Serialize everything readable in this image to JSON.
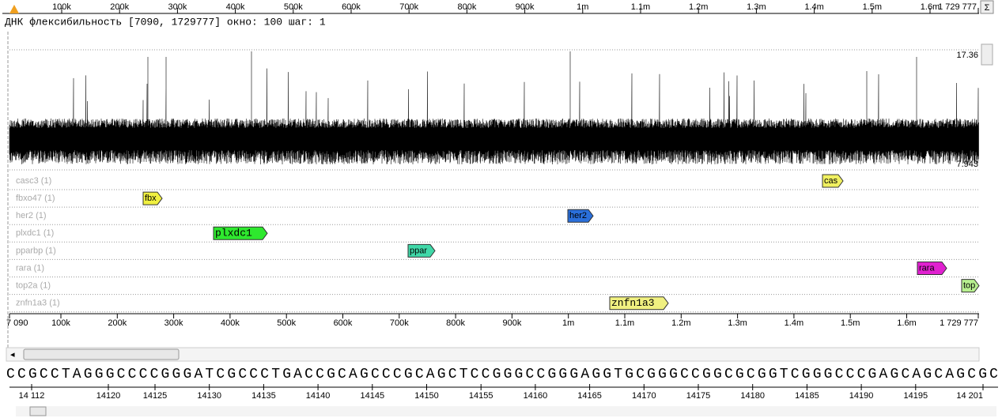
{
  "top_ruler": {
    "labels": [
      "100k",
      "200k",
      "300k",
      "400k",
      "500k",
      "600k",
      "700k",
      "800k",
      "900k",
      "1m",
      "1.1m",
      "1.2m",
      "1.3m",
      "1.4m",
      "1.5m",
      "1.6m",
      "1 729 777"
    ],
    "button": "Σ"
  },
  "track_title": "ДНК флексибильность [7090, 1729777] окно: 100 шаг: 1",
  "plot": {
    "max_label": "17.36",
    "min_label": "7.943"
  },
  "genes": [
    {
      "track": "casc3 (1)",
      "label": "cas",
      "color": "#f0f060"
    },
    {
      "track": "fbxo47 (1)",
      "label": "fbx",
      "color": "#f0f040"
    },
    {
      "track": "her2 (1)",
      "label": "her2",
      "color": "#2a6fdb"
    },
    {
      "track": "plxdc1 (1)",
      "label": "plxdc1",
      "color": "#2ee82e"
    },
    {
      "track": "pparbp (1)",
      "label": "ppar",
      "color": "#40d8a8"
    },
    {
      "track": "rara (1)",
      "label": "rara",
      "color": "#e020d0"
    },
    {
      "track": "top2a (1)",
      "label": "top",
      "color": "#b8f090"
    },
    {
      "track": "znfn1a3 (1)",
      "label": "znfn1a3",
      "color": "#f0f080"
    }
  ],
  "bottom_ruler": {
    "labels": [
      "7 090",
      "100k",
      "200k",
      "300k",
      "400k",
      "500k",
      "600k",
      "700k",
      "800k",
      "900k",
      "1m",
      "1.1m",
      "1.2m",
      "1.3m",
      "1.4m",
      "1.5m",
      "1.6m",
      "1 729 777"
    ]
  },
  "sequence": "CCGCCTAGGGCCCCGGGATCGCCCTGACCGCAGCCCGCAGCTCCGGGCCGGGAGGTGCGGGCCGGCGCGGTCGGGCCCGAGCAGCAGCGC",
  "sequence_ruler": {
    "labels": [
      "14 112",
      "14120",
      "14125",
      "14130",
      "14135",
      "14140",
      "14145",
      "14150",
      "14155",
      "14160",
      "14165",
      "14170",
      "14175",
      "14180",
      "14185",
      "14190",
      "14195",
      "14 201"
    ]
  }
}
